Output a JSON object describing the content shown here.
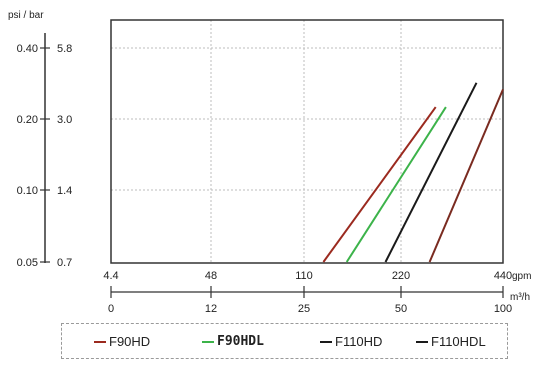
{
  "chart_data": {
    "type": "line",
    "left_axis_unit": "psi / bar",
    "psi_ticks": [
      "0.40",
      "0.20",
      "0.10",
      "0.05"
    ],
    "bar_ticks": [
      "5.8",
      "3.0",
      "1.4",
      "0.7"
    ],
    "bar_axis_log": true,
    "gpm_ticks": [
      "4.4",
      "48",
      "110",
      "220",
      "440"
    ],
    "gpm_unit": "gpm",
    "m3h_ticks": [
      "0",
      "12",
      "25",
      "50",
      "100"
    ],
    "m3h_unit": "m³/h",
    "x_axis_m3h_range": [
      0,
      100
    ],
    "y_axis_bar_range": [
      0.7,
      5.8
    ],
    "grid": true,
    "legend_placement": "bottom",
    "series": [
      {
        "name": "F90HD",
        "color": "#9b2a1f",
        "points": [
          [
            30,
            0.7
          ],
          [
            67,
            3.35
          ]
        ]
      },
      {
        "name": "F90HDL",
        "color": "#3cb34a",
        "points": [
          [
            36,
            0.7
          ],
          [
            72,
            3.35
          ]
        ]
      },
      {
        "name": "F110HD",
        "color": "#1a1a1a",
        "points": [
          [
            46,
            0.7
          ],
          [
            87,
            4.2
          ]
        ]
      },
      {
        "name": "F110HDL",
        "color": "#7a2b20",
        "points": [
          [
            64,
            0.7
          ],
          [
            100,
            3.95
          ]
        ]
      }
    ]
  }
}
